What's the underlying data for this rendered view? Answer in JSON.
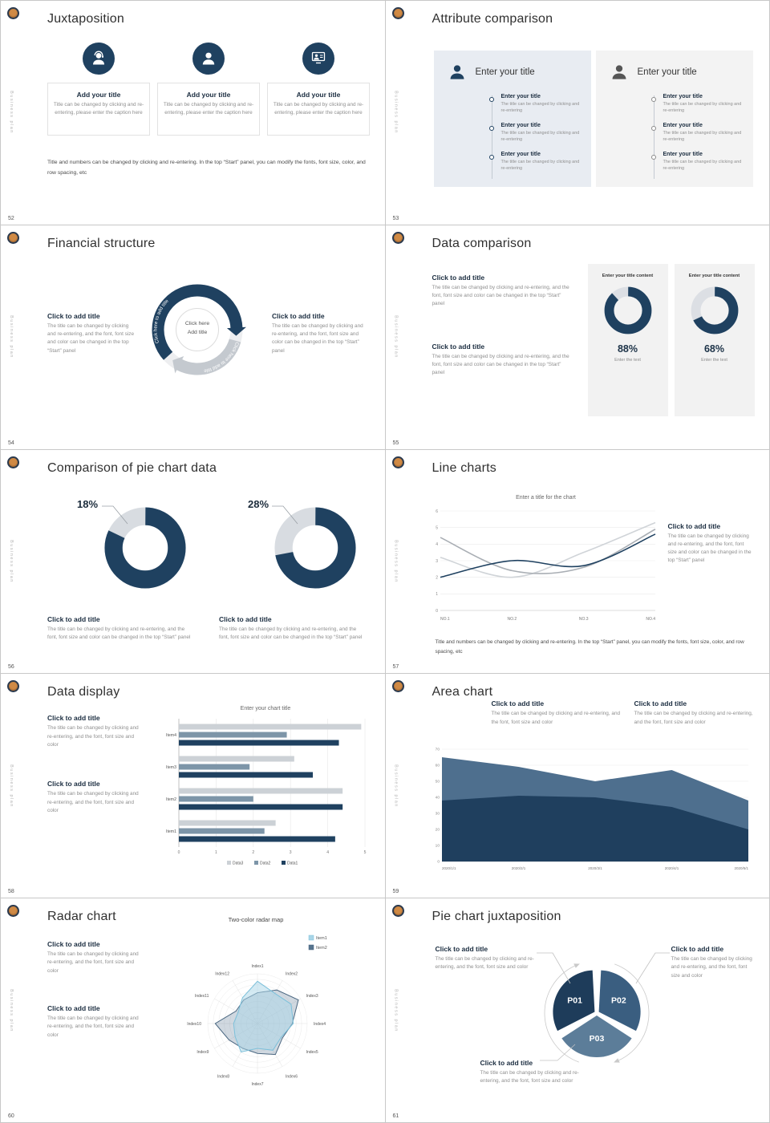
{
  "brand": {
    "vertical_text": "Business plan",
    "accent": "#1f4160"
  },
  "slides": {
    "s52": {
      "number": "52",
      "title": "Juxtaposition",
      "cols": [
        {
          "heading": "Add your title",
          "caption": "Title can be changed by clicking and re-entering, please enter the caption here"
        },
        {
          "heading": "Add your title",
          "caption": "Title can be changed by clicking and re-entering, please enter the caption here"
        },
        {
          "heading": "Add your title",
          "caption": "Title can be changed by clicking and re-entering, please enter the caption here"
        }
      ],
      "footer": "Title and numbers can be changed by clicking and re-entering. In the top “Start” panel, you can modify the fonts, font size, color, and row spacing, etc"
    },
    "s53": {
      "number": "53",
      "title": "Attribute comparison",
      "panel_title": "Enter your title",
      "item_heading": "Enter your title",
      "item_caption": "The title can be changed by clicking and re-entering"
    },
    "s54": {
      "number": "54",
      "title": "Financial structure",
      "block_heading": "Click to add title",
      "block_caption": "The title can be changed by clicking and re-entering, and the font, font size and color can be changed in the top “Start” panel",
      "center_line1": "Click here",
      "center_line2": "Add title",
      "arc_label": "Click here to add title"
    },
    "s55": {
      "number": "55",
      "title": "Data comparison",
      "block_heading": "Click to add title",
      "block_caption": "The title can be changed by clicking and re-entering, and the font, font size and color can be changed in the top “Start” panel",
      "panels": [
        {
          "title": "Enter your title content",
          "value": 88,
          "value_label": "88%",
          "footer": "Enter the text"
        },
        {
          "title": "Enter your title content",
          "value": 68,
          "value_label": "68%",
          "footer": "Enter the text"
        }
      ]
    },
    "s56": {
      "number": "56",
      "title": "Comparison of pie chart data",
      "charts": [
        {
          "pct": 18,
          "pct_label": "18%"
        },
        {
          "pct": 28,
          "pct_label": "28%"
        }
      ],
      "block_heading": "Click to add title",
      "block_caption": "The title can be changed by clicking and re-entering, and the font, font size and color can be changed in the top “Start” panel"
    },
    "s57": {
      "number": "57",
      "title": "Line charts",
      "chart": {
        "type": "line",
        "title": "Enter a title for the chart",
        "x": [
          "NO.1",
          "NO.2",
          "NO.3",
          "NO.4"
        ],
        "ylim": [
          0,
          6
        ],
        "yticks": [
          0,
          1,
          2,
          3,
          4,
          5,
          6
        ],
        "series": [
          {
            "name": "series-navy",
            "color": "#1f4160",
            "values": [
              2.0,
              3.0,
              2.7,
              4.6
            ]
          },
          {
            "name": "series-gray",
            "color": "#a9aeb4",
            "values": [
              4.4,
              2.4,
              2.6,
              4.9
            ]
          },
          {
            "name": "series-lightgray",
            "color": "#d0d4d8",
            "values": [
              3.2,
              2.0,
              3.5,
              5.3
            ]
          }
        ]
      },
      "block_heading": "Click to add title",
      "block_caption": "The title can be changed by clicking and re-entering, and the font, font size and color can be changed in the top “Start” panel",
      "footer": "Title and numbers can be changed by clicking and re-entering. In the top “Start” panel, you can modify the fonts, font size, color, and row spacing, etc"
    },
    "s58": {
      "number": "58",
      "title": "Data display",
      "chart": {
        "type": "bar",
        "title": "Enter your chart title",
        "categories": [
          "Item1",
          "Item2",
          "Item3",
          "Item4"
        ],
        "xlim": [
          0,
          5
        ],
        "xticks": [
          0,
          1,
          2,
          3,
          4,
          5
        ],
        "series": [
          {
            "name": "Data1",
            "color": "#1f4160",
            "values": [
              4.2,
              4.4,
              3.6,
              4.3
            ]
          },
          {
            "name": "Data2",
            "color": "#7d95a8",
            "values": [
              2.3,
              2.0,
              1.9,
              2.9
            ]
          },
          {
            "name": "Data3",
            "color": "#ccd1d6",
            "values": [
              2.6,
              4.4,
              3.1,
              4.9
            ]
          }
        ],
        "legend": [
          "Data3",
          "Data2",
          "Data1"
        ]
      },
      "block_heading": "Click to add title",
      "block_caption": "The title can be changed by clicking and re-entering, and the font, font size and color"
    },
    "s59": {
      "number": "59",
      "title": "Area chart",
      "block_heading": "Click to add title",
      "block_caption": "The title can be changed by clicking and re-entering, and the font, font size and color",
      "chart": {
        "type": "area",
        "x": [
          "2020/1/1",
          "2020/2/1",
          "2020/3/1",
          "2020/4/1",
          "2020/5/1"
        ],
        "ylim": [
          0,
          70
        ],
        "yticks": [
          0,
          10,
          20,
          30,
          40,
          50,
          60,
          70
        ],
        "series": [
          {
            "name": "upper",
            "color": "#4e6f8e",
            "values": [
              65,
              59,
              50,
              57,
              38
            ]
          },
          {
            "name": "lower",
            "color": "#1f3f5e",
            "values": [
              38,
              41,
              40,
              34,
              20
            ]
          }
        ]
      }
    },
    "s60": {
      "number": "60",
      "title": "Radar chart",
      "block_heading": "Click to add title",
      "block_caption": "The title can be changed by clicking and re-entering, and the font, font size and color",
      "chart": {
        "type": "radar",
        "title": "Two-color radar map",
        "axes": [
          "Index1",
          "Index2",
          "Index3",
          "Index4",
          "Index5",
          "Index6",
          "Index7",
          "Index8",
          "Index9",
          "Index10",
          "Index11",
          "Index12"
        ],
        "series": [
          {
            "name": "Item1",
            "color": "#a9d6e8",
            "stroke": "#7cc0da",
            "values": [
              0.85,
              0.7,
              0.78,
              0.72,
              0.55,
              0.62,
              0.5,
              0.66,
              0.52,
              0.48,
              0.45,
              0.6
            ]
          },
          {
            "name": "Item2",
            "color": "#56748e",
            "stroke": "#4a6781",
            "values": [
              0.62,
              0.78,
              0.95,
              0.7,
              0.58,
              0.72,
              0.6,
              0.58,
              0.66,
              0.85,
              0.5,
              0.55
            ]
          }
        ]
      }
    },
    "s61": {
      "number": "61",
      "title": "Pie chart juxtaposition",
      "block_heading": "Click to add title",
      "block_caption": "The title can be changed by clicking and re-entering, and the font, font size and color",
      "chart": {
        "type": "pie",
        "slices": [
          {
            "label": "P01",
            "color": "#1e3c5a",
            "value": 33.3
          },
          {
            "label": "P02",
            "color": "#3a5e80",
            "value": 33.3
          },
          {
            "label": "P03",
            "color": "#5c7d99",
            "value": 33.4
          }
        ]
      }
    }
  }
}
